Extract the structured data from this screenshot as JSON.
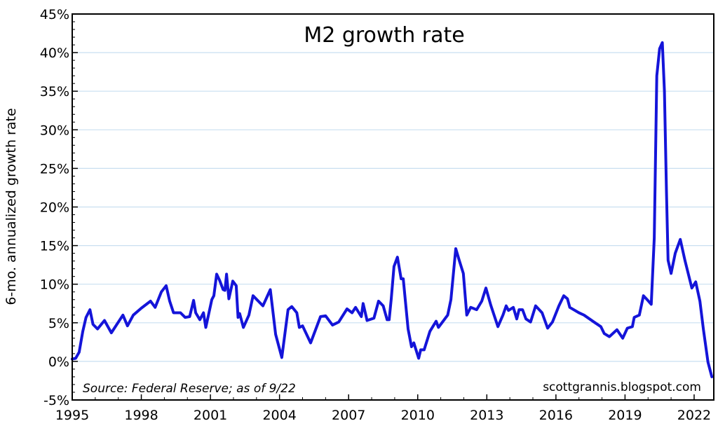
{
  "chart_data": {
    "type": "line",
    "title": "M2 growth rate",
    "xlabel": "",
    "ylabel": "6-mo. annualized growth rate",
    "xlim": [
      1995,
      2022.9
    ],
    "ylim": [
      -5,
      45
    ],
    "x_ticks": [
      1995,
      1998,
      2001,
      2004,
      2007,
      2010,
      2013,
      2016,
      2019,
      2022
    ],
    "x_tick_labels": [
      "1995",
      "1998",
      "2001",
      "2004",
      "2007",
      "2010",
      "2013",
      "2016",
      "2019",
      "2022"
    ],
    "y_ticks": [
      -5,
      0,
      5,
      10,
      15,
      20,
      25,
      30,
      35,
      40,
      45
    ],
    "y_tick_labels": [
      "-5%",
      "0%",
      "5%",
      "10%",
      "15%",
      "20%",
      "25%",
      "30%",
      "35%",
      "40%",
      "45%"
    ],
    "grid": true,
    "annotations": {
      "source": "Source: Federal Reserve; as of 9/22",
      "watermark": "scottgrannis.blogspot.com"
    },
    "colors": {
      "line": "#1414d9",
      "grid": "#c9dff0"
    },
    "series": [
      {
        "name": "M2 6-mo. annualized growth rate",
        "points": [
          [
            1995.0,
            0.3
          ],
          [
            1995.15,
            0.4
          ],
          [
            1995.3,
            1.2
          ],
          [
            1995.46,
            3.9
          ],
          [
            1995.6,
            5.7
          ],
          [
            1995.77,
            6.7
          ],
          [
            1995.9,
            4.8
          ],
          [
            1996.1,
            4.2
          ],
          [
            1996.4,
            5.3
          ],
          [
            1996.7,
            3.7
          ],
          [
            1997.2,
            6.0
          ],
          [
            1997.4,
            4.6
          ],
          [
            1997.65,
            6.0
          ],
          [
            1998.0,
            6.9
          ],
          [
            1998.4,
            7.8
          ],
          [
            1998.6,
            7.0
          ],
          [
            1998.87,
            9.0
          ],
          [
            1999.08,
            9.8
          ],
          [
            1999.23,
            7.8
          ],
          [
            1999.4,
            6.3
          ],
          [
            1999.7,
            6.3
          ],
          [
            1999.9,
            5.7
          ],
          [
            2000.1,
            5.8
          ],
          [
            2000.27,
            7.9
          ],
          [
            2000.36,
            6.3
          ],
          [
            2000.54,
            5.4
          ],
          [
            2000.7,
            6.3
          ],
          [
            2000.8,
            4.4
          ],
          [
            2001.06,
            8.0
          ],
          [
            2001.15,
            8.5
          ],
          [
            2001.27,
            11.3
          ],
          [
            2001.4,
            10.5
          ],
          [
            2001.55,
            9.3
          ],
          [
            2001.63,
            9.2
          ],
          [
            2001.7,
            11.3
          ],
          [
            2001.8,
            8.1
          ],
          [
            2001.97,
            10.4
          ],
          [
            2002.12,
            9.8
          ],
          [
            2002.2,
            5.7
          ],
          [
            2002.27,
            6.2
          ],
          [
            2002.43,
            4.4
          ],
          [
            2002.67,
            6.0
          ],
          [
            2002.85,
            8.5
          ],
          [
            2003.28,
            7.2
          ],
          [
            2003.6,
            9.3
          ],
          [
            2003.83,
            3.5
          ],
          [
            2004.1,
            0.5
          ],
          [
            2004.37,
            6.7
          ],
          [
            2004.53,
            7.1
          ],
          [
            2004.75,
            6.3
          ],
          [
            2004.86,
            4.4
          ],
          [
            2005.0,
            4.6
          ],
          [
            2005.35,
            2.4
          ],
          [
            2005.78,
            5.8
          ],
          [
            2006.0,
            5.9
          ],
          [
            2006.3,
            4.7
          ],
          [
            2006.57,
            5.1
          ],
          [
            2006.93,
            6.8
          ],
          [
            2007.15,
            6.3
          ],
          [
            2007.3,
            7.0
          ],
          [
            2007.55,
            5.8
          ],
          [
            2007.63,
            7.5
          ],
          [
            2007.8,
            5.3
          ],
          [
            2008.1,
            5.6
          ],
          [
            2008.3,
            7.8
          ],
          [
            2008.5,
            7.2
          ],
          [
            2008.67,
            5.4
          ],
          [
            2008.76,
            5.4
          ],
          [
            2008.85,
            8.1
          ],
          [
            2008.97,
            12.3
          ],
          [
            2009.12,
            13.5
          ],
          [
            2009.28,
            10.7
          ],
          [
            2009.37,
            10.7
          ],
          [
            2009.58,
            4.2
          ],
          [
            2009.73,
            1.9
          ],
          [
            2009.83,
            2.4
          ],
          [
            2010.04,
            0.4
          ],
          [
            2010.13,
            1.5
          ],
          [
            2010.28,
            1.5
          ],
          [
            2010.53,
            3.9
          ],
          [
            2010.8,
            5.2
          ],
          [
            2010.9,
            4.4
          ],
          [
            2011.3,
            6.0
          ],
          [
            2011.44,
            8.0
          ],
          [
            2011.65,
            14.6
          ],
          [
            2011.8,
            13.1
          ],
          [
            2011.98,
            11.4
          ],
          [
            2012.13,
            6.0
          ],
          [
            2012.3,
            7.0
          ],
          [
            2012.56,
            6.7
          ],
          [
            2012.78,
            7.8
          ],
          [
            2012.96,
            9.5
          ],
          [
            2013.17,
            7.3
          ],
          [
            2013.48,
            4.5
          ],
          [
            2013.7,
            6.0
          ],
          [
            2013.84,
            7.2
          ],
          [
            2013.94,
            6.6
          ],
          [
            2014.15,
            7.0
          ],
          [
            2014.3,
            5.5
          ],
          [
            2014.4,
            6.7
          ],
          [
            2014.55,
            6.7
          ],
          [
            2014.7,
            5.5
          ],
          [
            2014.9,
            5.1
          ],
          [
            2015.12,
            7.2
          ],
          [
            2015.4,
            6.3
          ],
          [
            2015.64,
            4.3
          ],
          [
            2015.85,
            5.1
          ],
          [
            2016.13,
            7.2
          ],
          [
            2016.34,
            8.5
          ],
          [
            2016.5,
            8.1
          ],
          [
            2016.6,
            7.0
          ],
          [
            2017.0,
            6.3
          ],
          [
            2017.22,
            6.0
          ],
          [
            2017.65,
            5.1
          ],
          [
            2017.95,
            4.5
          ],
          [
            2018.1,
            3.6
          ],
          [
            2018.32,
            3.2
          ],
          [
            2018.65,
            4.1
          ],
          [
            2018.9,
            3.0
          ],
          [
            2019.1,
            4.3
          ],
          [
            2019.32,
            4.5
          ],
          [
            2019.4,
            5.7
          ],
          [
            2019.62,
            6.0
          ],
          [
            2019.8,
            8.5
          ],
          [
            2019.96,
            8.0
          ],
          [
            2020.14,
            7.4
          ],
          [
            2020.27,
            16.0
          ],
          [
            2020.38,
            37.0
          ],
          [
            2020.5,
            40.5
          ],
          [
            2020.62,
            41.3
          ],
          [
            2020.71,
            35.0
          ],
          [
            2020.8,
            22.0
          ],
          [
            2020.87,
            13.1
          ],
          [
            2021.0,
            11.4
          ],
          [
            2021.18,
            14.0
          ],
          [
            2021.4,
            15.8
          ],
          [
            2021.6,
            13.1
          ],
          [
            2021.9,
            9.5
          ],
          [
            2022.07,
            10.3
          ],
          [
            2022.25,
            7.8
          ],
          [
            2022.4,
            4.2
          ],
          [
            2022.6,
            -0.1
          ],
          [
            2022.77,
            -2.0
          ]
        ]
      }
    ]
  }
}
